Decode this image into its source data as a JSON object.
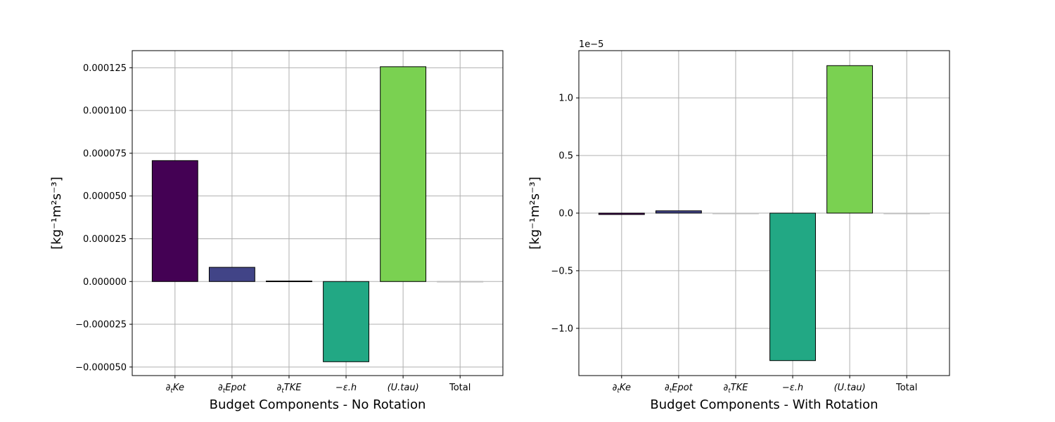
{
  "chart_data": [
    {
      "type": "bar",
      "categories": [
        "∂tKe",
        "∂tEpot",
        "∂tTKE",
        "−ε.h",
        "(U.tau)",
        "Total"
      ],
      "values": [
        7.07e-05,
        8.3e-06,
        3e-07,
        -4.69e-05,
        0.0001256,
        1e-07
      ],
      "colors": [
        "#440154",
        "#414487",
        "#2a788e",
        "#22a884",
        "#7ad151",
        "#bdbdbd"
      ],
      "title": "",
      "xlabel": "Budget Components - No Rotation",
      "ylabel": "[kg⁻¹m²s⁻³]",
      "ylim": [
        -5.5e-05,
        0.000135
      ],
      "yticks": [
        -5e-05,
        -2.5e-05,
        0,
        2.5e-05,
        5e-05,
        7.5e-05,
        0.0001,
        0.000125
      ],
      "ytick_labels": [
        "−0.000050",
        "−0.000025",
        "0.000000",
        "0.000025",
        "0.000050",
        "0.000075",
        "0.000100",
        "0.000125"
      ],
      "offset_label": "",
      "grid": true,
      "legend": "none"
    },
    {
      "type": "bar",
      "categories": [
        "∂tKe",
        "∂tEpot",
        "∂tTKE",
        "−ε.h",
        "(U.tau)",
        "Total"
      ],
      "values": [
        -1.2e-07,
        2e-07,
        0.0,
        -1.28e-05,
        1.28e-05,
        0.0
      ],
      "colors": [
        "#440154",
        "#414487",
        "#2a788e",
        "#22a884",
        "#7ad151",
        "#bdbdbd"
      ],
      "title": "",
      "xlabel": "Budget Components - With Rotation",
      "ylabel": "[kg⁻¹m²s⁻³]",
      "ylim": [
        -1.41e-05,
        1.41e-05
      ],
      "yticks": [
        -1e-05,
        -5e-06,
        0,
        5e-06,
        1e-05
      ],
      "ytick_labels": [
        "−1.0",
        "−0.5",
        "0.0",
        "0.5",
        "1.0"
      ],
      "offset_label": "1e−5",
      "grid": true,
      "legend": "none"
    }
  ]
}
